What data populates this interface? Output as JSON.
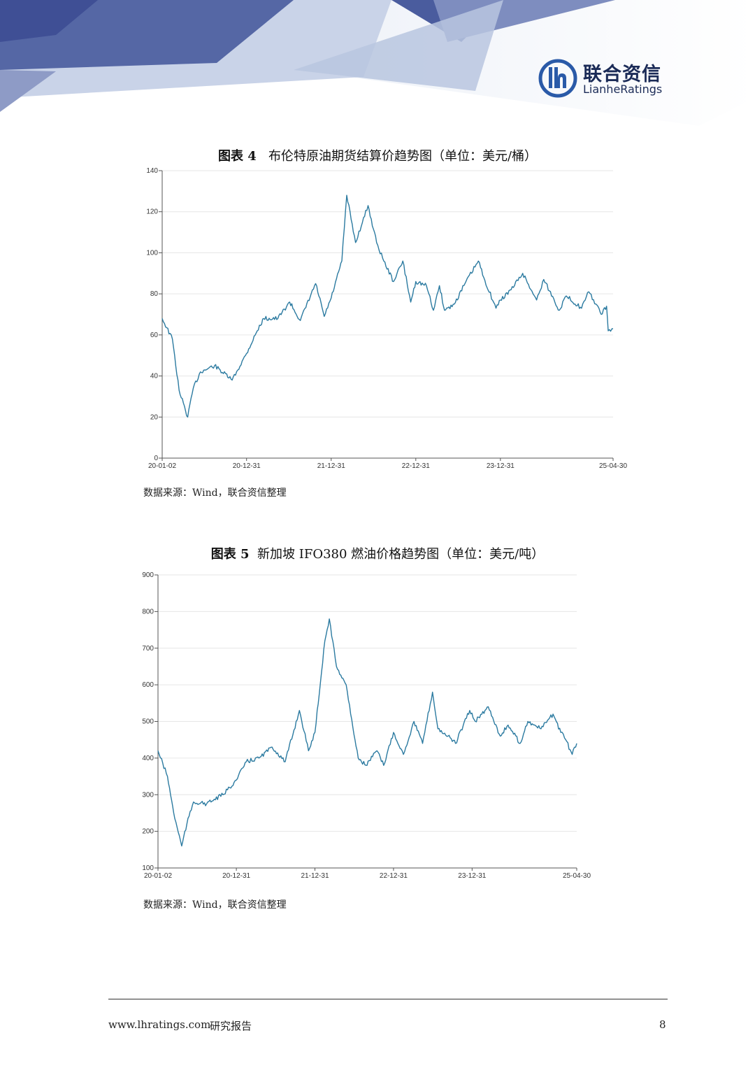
{
  "brand": {
    "name_cn": "联合资信",
    "name_en": "LianheRatings",
    "color": "#1b2b57",
    "accent": "#2a5aa8"
  },
  "charts": [
    {
      "title_prefix": "图表 4",
      "title_text": "布伦特原油期货结算价趋势图（单位：美元/桶）",
      "source": "数据来源：Wind，联合资信整理"
    },
    {
      "title_prefix": "图表 5",
      "title_text": "新加坡 IFO380 燃油价格趋势图（单位：美元/吨）",
      "source": "数据来源：Wind，联合资信整理"
    }
  ],
  "chart_data": [
    {
      "type": "line",
      "title": "布伦特原油期货结算价趋势图（单位：美元/桶）",
      "line_color": "#2b7aa0",
      "ylim": [
        0,
        140
      ],
      "yticks": [
        "0",
        "20",
        "40",
        "60",
        "80",
        "100",
        "120",
        "140"
      ],
      "xticks": [
        "20-01-02",
        "20-12-31",
        "21-12-31",
        "22-12-31",
        "23-12-31",
        "25-04-30"
      ],
      "grid": true,
      "x": [
        "2020-01-02",
        "2020-02-15",
        "2020-03-15",
        "2020-04-21",
        "2020-05-15",
        "2020-06-15",
        "2020-08-15",
        "2020-10-30",
        "2020-12-31",
        "2021-02-15",
        "2021-03-15",
        "2021-05-15",
        "2021-07-05",
        "2021-08-20",
        "2021-10-25",
        "2021-12-01",
        "2021-12-31",
        "2022-02-15",
        "2022-03-08",
        "2022-04-15",
        "2022-06-08",
        "2022-07-15",
        "2022-08-15",
        "2022-09-26",
        "2022-11-05",
        "2022-12-09",
        "2022-12-31",
        "2023-02-15",
        "2023-03-17",
        "2023-04-12",
        "2023-05-04",
        "2023-06-15",
        "2023-07-31",
        "2023-09-27",
        "2023-10-20",
        "2023-12-12",
        "2023-12-31",
        "2024-02-15",
        "2024-04-05",
        "2024-06-04",
        "2024-07-05",
        "2024-09-10",
        "2024-10-10",
        "2024-12-15",
        "2025-01-15",
        "2025-02-15",
        "2025-03-10",
        "2025-04-02",
        "2025-04-09",
        "2025-04-30"
      ],
      "series": [
        {
          "values": [
            68,
            58,
            33,
            20,
            34,
            42,
            45,
            38,
            51,
            62,
            68,
            68,
            76,
            67,
            85,
            69,
            78,
            96,
            128,
            105,
            123,
            105,
            96,
            86,
            96,
            76,
            86,
            84,
            72,
            84,
            72,
            75,
            85,
            96,
            88,
            73,
            77,
            82,
            90,
            77,
            87,
            72,
            79,
            73,
            81,
            75,
            70,
            74,
            62,
            63
          ]
        }
      ]
    },
    {
      "type": "line",
      "title": "新加坡 IFO380 燃油价格趋势图（单位：美元/吨）",
      "line_color": "#2b7aa0",
      "ylim": [
        100,
        900
      ],
      "yticks": [
        "100",
        "200",
        "300",
        "400",
        "500",
        "600",
        "700",
        "800",
        "900"
      ],
      "xticks": [
        "20-01-02",
        "20-12-31",
        "21-12-31",
        "22-12-31",
        "23-12-31",
        "25-04-30"
      ],
      "grid": true,
      "x": [
        "2020-01-02",
        "2020-02-15",
        "2020-03-15",
        "2020-04-21",
        "2020-05-15",
        "2020-06-15",
        "2020-08-15",
        "2020-10-30",
        "2020-12-31",
        "2021-02-15",
        "2021-04-15",
        "2021-06-15",
        "2021-08-15",
        "2021-10-20",
        "2021-12-01",
        "2021-12-31",
        "2022-02-15",
        "2022-03-08",
        "2022-04-10",
        "2022-05-25",
        "2022-06-15",
        "2022-07-20",
        "2022-08-25",
        "2022-10-15",
        "2022-11-15",
        "2022-12-31",
        "2023-02-15",
        "2023-04-05",
        "2023-05-15",
        "2023-06-30",
        "2023-07-25",
        "2023-09-10",
        "2023-10-15",
        "2023-12-20",
        "2024-01-15",
        "2024-03-15",
        "2024-05-10",
        "2024-06-15",
        "2024-08-10",
        "2024-09-15",
        "2024-11-15",
        "2025-01-10",
        "2025-02-15",
        "2025-03-10",
        "2025-04-09",
        "2025-04-30"
      ],
      "series": [
        {
          "values": [
            420,
            350,
            250,
            160,
            220,
            280,
            275,
            300,
            340,
            390,
            400,
            430,
            390,
            530,
            420,
            470,
            720,
            780,
            650,
            600,
            520,
            400,
            380,
            420,
            380,
            470,
            410,
            500,
            440,
            580,
            480,
            460,
            440,
            530,
            500,
            540,
            460,
            490,
            440,
            500,
            480,
            520,
            470,
            450,
            410,
            440
          ]
        }
      ]
    }
  ],
  "footer": {
    "website": "www.lhratings.com",
    "doc_type": "研究报告",
    "page_number": "8"
  }
}
